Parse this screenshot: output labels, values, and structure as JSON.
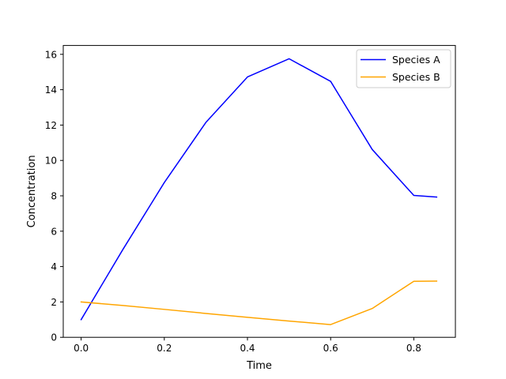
{
  "chart_data": {
    "type": "line",
    "title": "",
    "xlabel": "Time",
    "ylabel": "Concentration",
    "xlim": [
      -0.043,
      0.9
    ],
    "ylim": [
      0,
      16.5
    ],
    "xticks": [
      0.0,
      0.2,
      0.4,
      0.6,
      0.8
    ],
    "xtick_labels": [
      "0.0",
      "0.2",
      "0.4",
      "0.6",
      "0.8"
    ],
    "yticks": [
      0,
      2,
      4,
      6,
      8,
      10,
      12,
      14,
      16
    ],
    "ytick_labels": [
      "0",
      "2",
      "4",
      "6",
      "8",
      "10",
      "12",
      "14",
      "16"
    ],
    "grid": false,
    "legend_position": "top-right",
    "series": [
      {
        "name": "Species A",
        "color": "#0000ff",
        "x": [
          0.0,
          0.1,
          0.2,
          0.3,
          0.4,
          0.5,
          0.6,
          0.7,
          0.8,
          0.855
        ],
        "y": [
          1.0,
          4.95,
          8.75,
          12.15,
          14.72,
          15.75,
          14.47,
          10.62,
          8.02,
          7.93
        ]
      },
      {
        "name": "Species B",
        "color": "#ffa500",
        "x": [
          0.0,
          0.1,
          0.2,
          0.3,
          0.4,
          0.5,
          0.6,
          0.7,
          0.8,
          0.855
        ],
        "y": [
          2.0,
          1.8,
          1.58,
          1.35,
          1.13,
          0.92,
          0.72,
          1.63,
          3.17,
          3.18
        ]
      }
    ]
  }
}
